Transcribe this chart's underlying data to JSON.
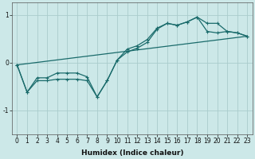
{
  "xlabel": "Humidex (Indice chaleur)",
  "ylabel": "",
  "background_color": "#cce8e8",
  "grid_color": "#aacccc",
  "line_color": "#1a6b6b",
  "xlim": [
    -0.5,
    23.5
  ],
  "ylim": [
    -1.5,
    1.25
  ],
  "x_ticks": [
    0,
    1,
    2,
    3,
    4,
    5,
    6,
    7,
    8,
    9,
    10,
    11,
    12,
    13,
    14,
    15,
    16,
    17,
    18,
    19,
    20,
    21,
    22,
    23
  ],
  "y_ticks": [
    -1,
    0,
    1
  ],
  "line1_x": [
    0,
    1,
    2,
    3,
    4,
    5,
    6,
    7,
    8,
    9,
    10,
    11,
    12,
    13,
    14,
    15,
    16,
    17,
    18,
    19,
    20,
    21,
    22,
    23
  ],
  "line1_y": [
    -0.05,
    -0.62,
    -0.38,
    -0.38,
    -0.35,
    -0.35,
    -0.35,
    -0.38,
    -0.72,
    -0.38,
    0.05,
    0.22,
    0.3,
    0.42,
    0.7,
    0.82,
    0.78,
    0.85,
    0.95,
    0.82,
    0.82,
    0.65,
    0.62,
    0.55
  ],
  "line2_x": [
    0,
    1,
    2,
    3,
    4,
    5,
    6,
    7,
    8,
    9,
    10,
    11,
    12,
    13,
    14,
    15,
    16,
    17,
    18,
    19,
    20,
    21,
    22,
    23
  ],
  "line2_y": [
    -0.05,
    -0.62,
    -0.32,
    -0.32,
    -0.22,
    -0.22,
    -0.22,
    -0.3,
    -0.72,
    -0.38,
    0.05,
    0.28,
    0.35,
    0.48,
    0.72,
    0.82,
    0.78,
    0.85,
    0.95,
    0.65,
    0.62,
    0.65,
    0.62,
    0.55
  ],
  "line3_x": [
    0,
    23
  ],
  "line3_y": [
    -0.05,
    0.55
  ]
}
